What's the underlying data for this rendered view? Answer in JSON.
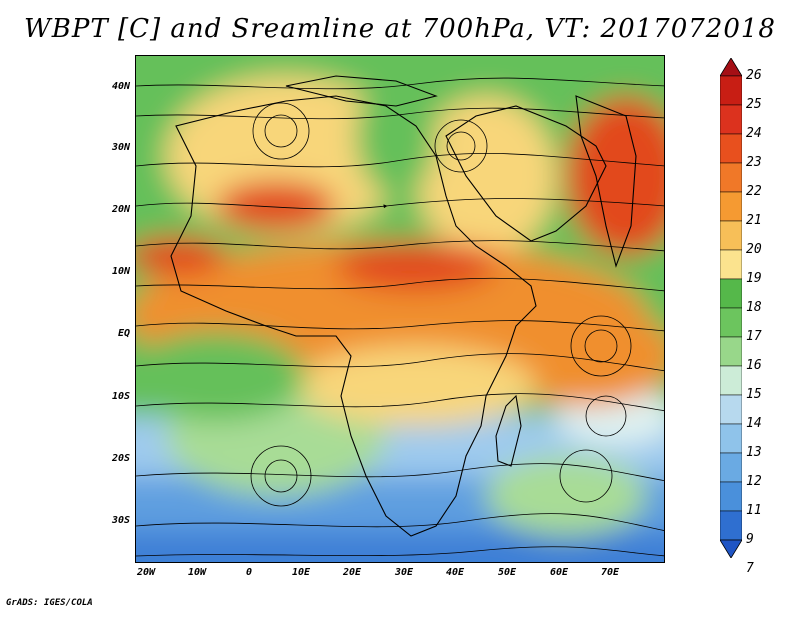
{
  "title": "WBPT [C] and Sreamline at 700hPa, VT: 2017072018",
  "credit": "GrADS: IGES/COLA",
  "lat_labels": [
    "40N",
    "30N",
    "20N",
    "10N",
    "EQ",
    "10S",
    "20S",
    "30S"
  ],
  "lon_labels": [
    "20W",
    "10W",
    "0",
    "10E",
    "20E",
    "30E",
    "40E",
    "50E",
    "60E",
    "70E"
  ],
  "colorbar": {
    "labels": [
      "26",
      "25",
      "24",
      "23",
      "22",
      "21",
      "20",
      "19",
      "18",
      "17",
      "16",
      "15",
      "14",
      "13",
      "12",
      "11",
      "9",
      "7"
    ],
    "colors": [
      "#a50f15",
      "#c81e14",
      "#dc321e",
      "#e8501e",
      "#f07828",
      "#f59a32",
      "#f7bf58",
      "#fbe38e",
      "#55b84a",
      "#6cc55e",
      "#98d78a",
      "#ccecd7",
      "#b7d9ee",
      "#8fc3ea",
      "#6aaae3",
      "#4a90db",
      "#2f6fd0",
      "#1f55c4"
    ]
  },
  "field_colors": {
    "hot": "#e24a1c",
    "warm": "#f08f2e",
    "yellow": "#f8d67a",
    "green": "#65c05a",
    "light_green": "#a8dc96",
    "pale": "#dff1f0",
    "light_blue": "#9fcbee",
    "blue": "#5f9fe0",
    "dark_blue": "#3e7fd6"
  }
}
